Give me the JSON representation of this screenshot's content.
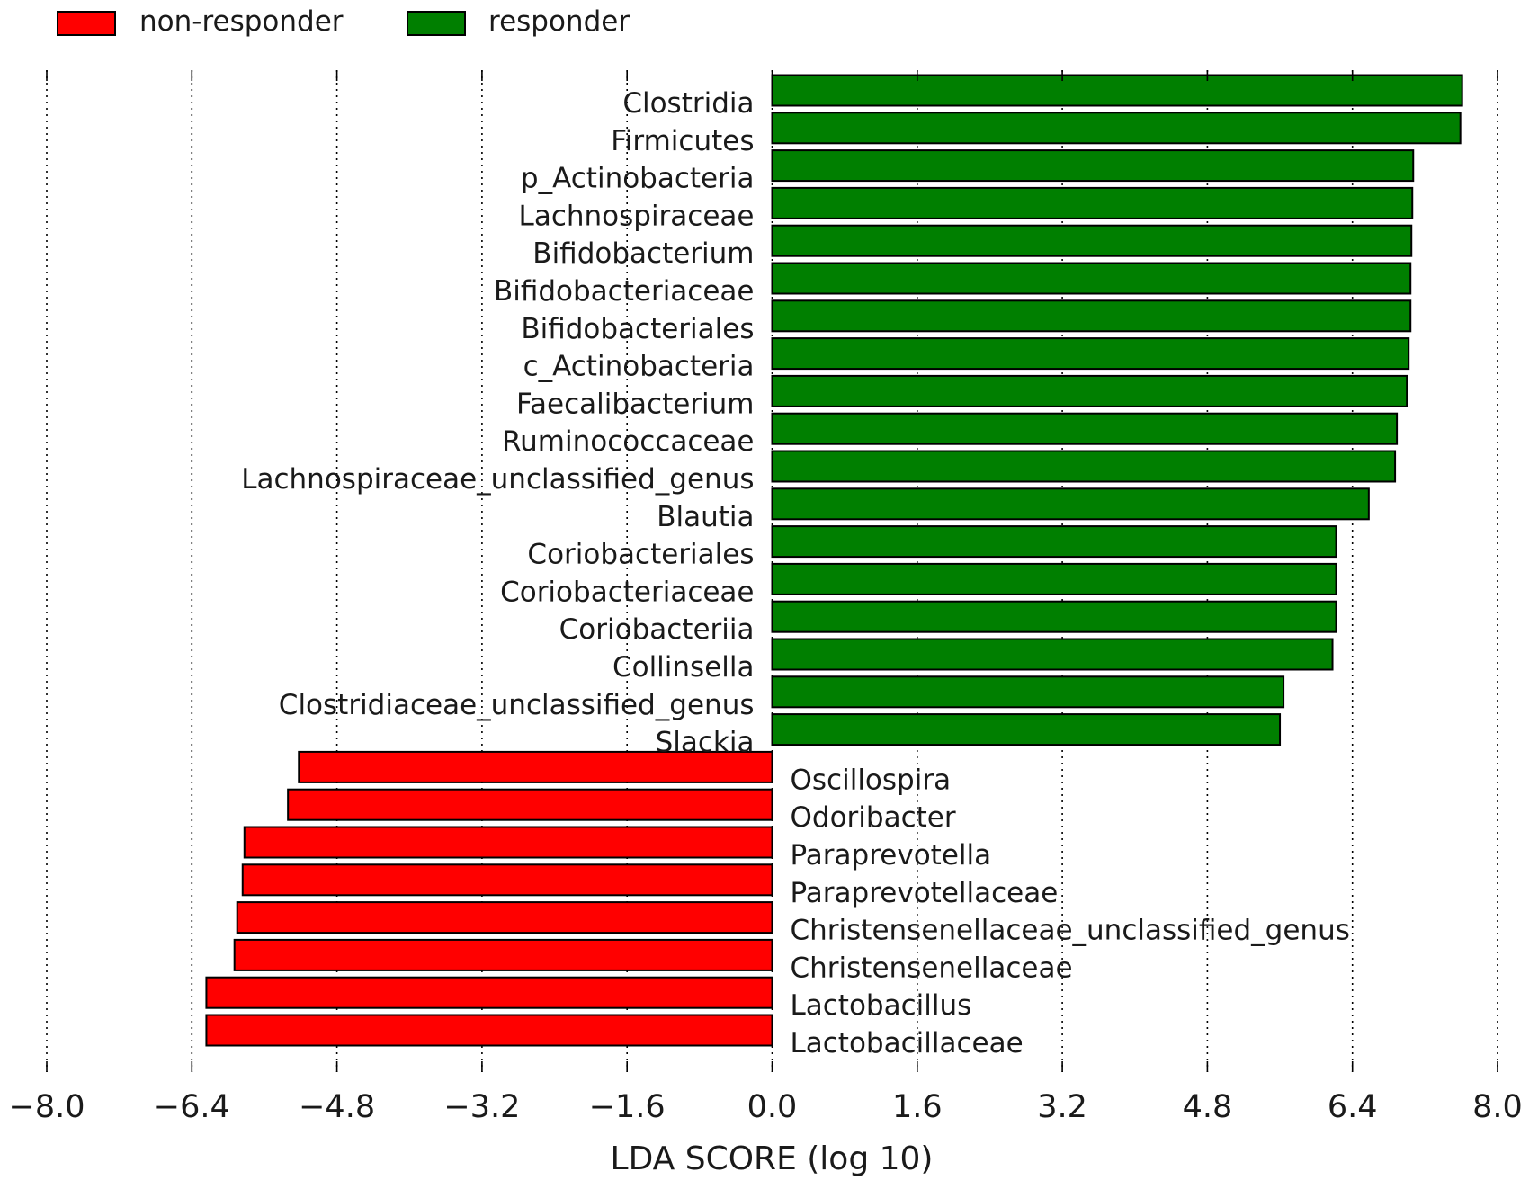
{
  "chart_data": {
    "type": "bar",
    "orientation": "horizontal",
    "title": "",
    "xlabel": "LDA SCORE (log 10)",
    "ylabel": "",
    "xlim": [
      -8.0,
      8.0
    ],
    "xticks": [
      -8.0,
      -6.4,
      -4.8,
      -3.2,
      -1.6,
      0.0,
      1.6,
      3.2,
      4.8,
      6.4,
      8.0
    ],
    "xtick_labels": [
      "−8.0",
      "−6.4",
      "−4.8",
      "−3.2",
      "−1.6",
      "0.0",
      "1.6",
      "3.2",
      "4.8",
      "6.4",
      "8.0"
    ],
    "grid": "vertical dotted",
    "legend": [
      {
        "name": "non-responder",
        "color": "#ff0000"
      },
      {
        "name": "responder",
        "color": "#007f00"
      }
    ],
    "legend_placement": "top-left",
    "series": [
      {
        "name": "responder",
        "color": "#007f00",
        "categories": [
          "Clostridia",
          "Firmicutes",
          "p_Actinobacteria",
          "Lachnospiraceae",
          "Bifidobacterium",
          "Bifidobacteriaceae",
          "Bifidobacteriales",
          "c_Actinobacteria",
          "Faecalibacterium",
          "Ruminococcaceae",
          "Lachnospiraceae_unclassified_genus",
          "Blautia",
          "Coriobacteriales",
          "Coriobacteriaceae",
          "Coriobacteriia",
          "Collinsella",
          "Clostridiaceae_unclassified_genus",
          "Slackia"
        ],
        "values": [
          7.61,
          7.59,
          7.07,
          7.06,
          7.05,
          7.04,
          7.04,
          7.02,
          7.0,
          6.89,
          6.87,
          6.58,
          6.22,
          6.22,
          6.22,
          6.18,
          5.64,
          5.6
        ]
      },
      {
        "name": "non-responder",
        "color": "#ff0000",
        "categories": [
          "Oscillospira",
          "Odoribacter",
          "Paraprevotella",
          "Paraprevotellaceae",
          "Christensenellaceae_unclassified_genus",
          "Christensenellaceae",
          "Lactobacillus",
          "Lactobacillaceae"
        ],
        "values": [
          -5.22,
          -5.34,
          -5.82,
          -5.84,
          -5.9,
          -5.93,
          -6.24,
          -6.24
        ]
      }
    ]
  }
}
